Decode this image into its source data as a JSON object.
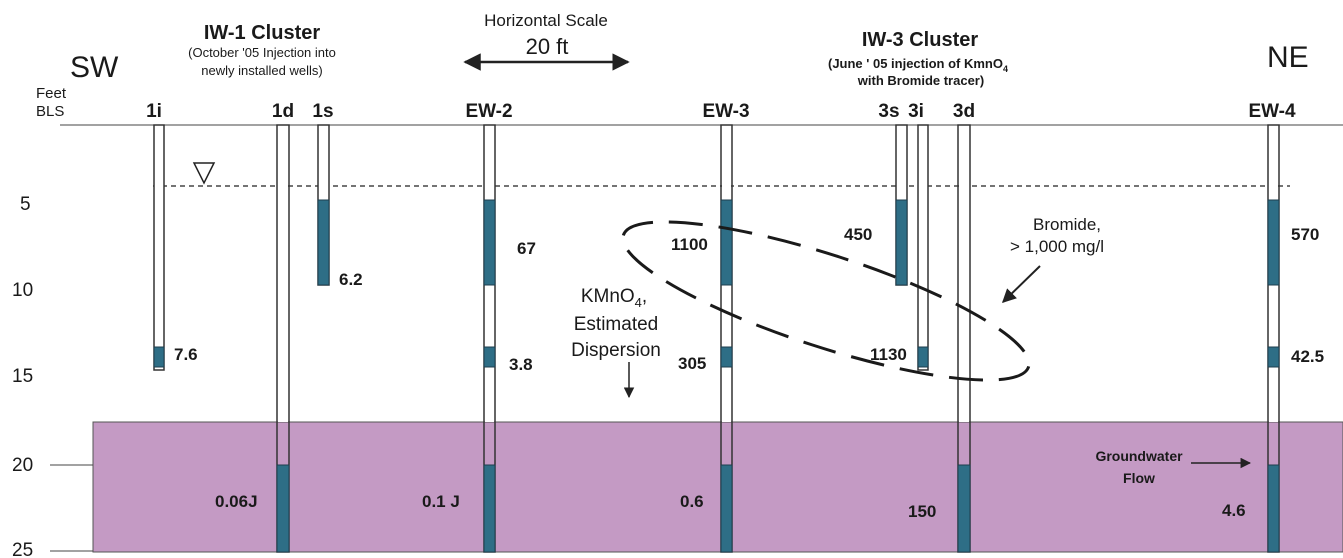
{
  "colors": {
    "clay_layer": "#c49ac4",
    "screen": "#2e6e86",
    "well_outline": "#333333",
    "line": "#222222"
  },
  "direction_labels": {
    "left": "SW",
    "right": "NE"
  },
  "axis": {
    "label_line1": "Feet",
    "label_line2": "BLS",
    "ticks": [
      "5",
      "10",
      "15",
      "20",
      "25"
    ]
  },
  "scale": {
    "title": "Horizontal Scale",
    "value": "20 ft"
  },
  "clusters": {
    "iw1": {
      "title": "IW-1 Cluster",
      "note_line1": "(October '05 Injection into",
      "note_line2": "newly installed wells)"
    },
    "iw3": {
      "title": "IW-3 Cluster",
      "note_line1_pre": "(June ' 05 injection of KmnO",
      "note_line1_sub": "4",
      "note_line2": "with Bromide tracer)"
    }
  },
  "wells": [
    {
      "id": "1i",
      "name": "1i",
      "values": [
        "7.6"
      ]
    },
    {
      "id": "1d",
      "name": "1d",
      "values": [
        "0.06J"
      ]
    },
    {
      "id": "1s",
      "name": "1s",
      "values": [
        "6.2"
      ]
    },
    {
      "id": "ew2",
      "name": "EW-2",
      "values": [
        "67",
        "3.8",
        "0.1 J"
      ]
    },
    {
      "id": "ew3",
      "name": "EW-3",
      "values": [
        "1100",
        "305",
        "0.6"
      ]
    },
    {
      "id": "3s",
      "name": "3s",
      "values": [
        "450"
      ]
    },
    {
      "id": "3i",
      "name": "3i",
      "values": [
        "1130"
      ]
    },
    {
      "id": "3d",
      "name": "3d",
      "values": [
        "150"
      ]
    },
    {
      "id": "ew4",
      "name": "EW-4",
      "values": [
        "570",
        "42.5",
        "4.6"
      ]
    }
  ],
  "annotations": {
    "kmno4_pre": "KMnO",
    "kmno4_sub": "4",
    "kmno4_post": ",",
    "estimated": "Estimated",
    "dispersion": "Dispersion",
    "bromide_line1": "Bromide,",
    "bromide_line2": "> 1,000 mg/l",
    "groundwater_line1": "Groundwater",
    "groundwater_line2": "Flow",
    "water_table_icon": "water-table-triangle-icon"
  }
}
